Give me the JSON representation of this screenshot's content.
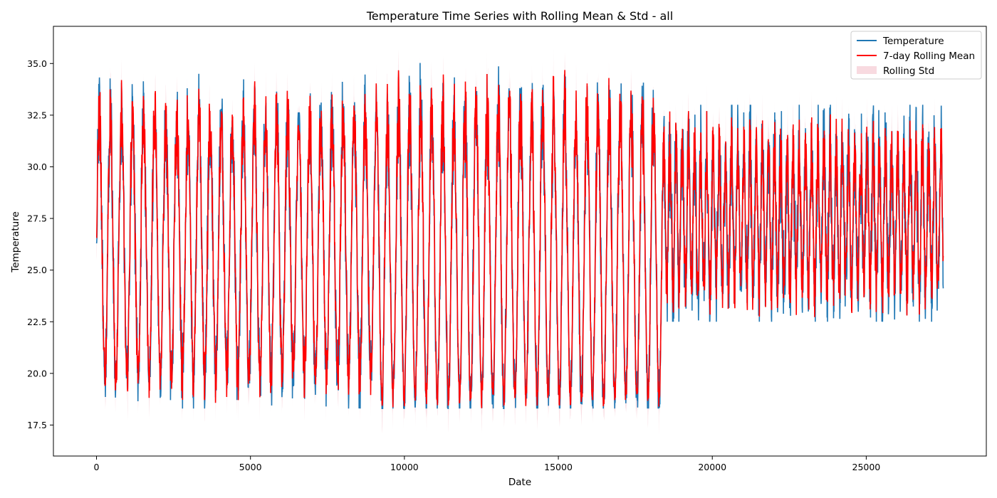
{
  "chart_data": {
    "type": "line",
    "title": "Temperature Time Series with Rolling Mean & Std - all",
    "xlabel": "Date",
    "ylabel": "Temperature",
    "xlim": [
      -1400,
      28900
    ],
    "ylim": [
      16.0,
      36.8
    ],
    "xticks": [
      0,
      5000,
      10000,
      15000,
      20000,
      25000
    ],
    "xtick_labels": [
      "0",
      "5000",
      "10000",
      "15000",
      "20000",
      "25000"
    ],
    "yticks": [
      17.5,
      20.0,
      22.5,
      25.0,
      27.5,
      30.0,
      32.5,
      35.0
    ],
    "ytick_labels": [
      "17.5",
      "20.0",
      "22.5",
      "25.0",
      "27.5",
      "30.0",
      "32.5",
      "35.0"
    ],
    "grid": false,
    "legend_position": "top-right",
    "colors": {
      "temperature": "#1f77b4",
      "rolling_mean": "#ff0000",
      "rolling_std": "#f4c2cc"
    },
    "series": [
      {
        "name": "Temperature",
        "kind": "line"
      },
      {
        "name": "7-day Rolling Mean",
        "kind": "line"
      },
      {
        "name": "Rolling Std",
        "kind": "band"
      }
    ],
    "x_range": [
      0,
      27500
    ],
    "regimes": [
      {
        "x_start": 0,
        "x_end": 9200,
        "cycle_length": 360,
        "amplitude_min": [
          18.3,
          20.5
        ],
        "amplitude_max": [
          31.0,
          34.5
        ],
        "mean": 25.5,
        "band_min_floor": 17.7
      },
      {
        "x_start": 9200,
        "x_end": 18400,
        "cycle_length": 360,
        "amplitude_min": [
          18.3,
          18.3
        ],
        "amplitude_max": [
          31.0,
          35.1
        ],
        "mean": 25.0,
        "band_min_floor": 16.4
      },
      {
        "x_start": 18400,
        "x_end": 27500,
        "cycle_length": 200,
        "amplitude_min": [
          22.5,
          25.5
        ],
        "amplitude_max": [
          29.0,
          33.0
        ],
        "mean": 27.3,
        "band_min_floor": 24.0
      }
    ]
  }
}
